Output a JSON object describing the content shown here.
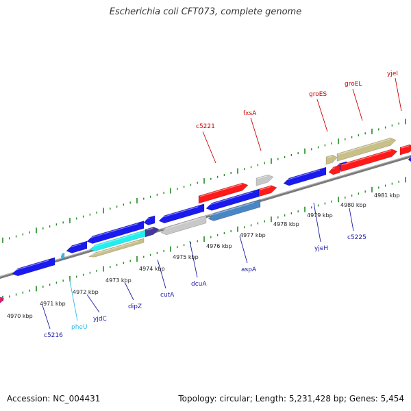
{
  "title": "Escherichia coli CFT073, complete genome",
  "footer": {
    "accession": "Accession: NC_004431",
    "summary": "Topology: circular; Length: 5,231,428 bp; Genes: 5,454"
  },
  "colors": {
    "red": "#ff1a1a",
    "blue": "#1a1aee",
    "gray": "#c8c8c8",
    "olive": "#c8c088",
    "cyan": "#22eeee",
    "steel": "#4a86c4",
    "indigo": "#44389a",
    "magenta": "#e0147a",
    "ticks": "#1e8a1e",
    "backbone": "#8c8c8c"
  },
  "kbp_labels": [
    "4970 kbp",
    "4971 kbp",
    "4972 kbp",
    "4973 kbp",
    "4974 kbp",
    "4975 kbp",
    "4976 kbp",
    "4977 kbp",
    "4978 kbp",
    "4979 kbp",
    "4980 kbp",
    "4981 kbp"
  ],
  "gene_labels_top": [
    "c5221",
    "fxsA",
    "groES",
    "groEL",
    "yjeI"
  ],
  "gene_labels_bottom": [
    "c5216",
    "pheU",
    "yjdC",
    "dipZ",
    "cutA",
    "dcuA",
    "aspA",
    "yjeH",
    "c5225"
  ]
}
